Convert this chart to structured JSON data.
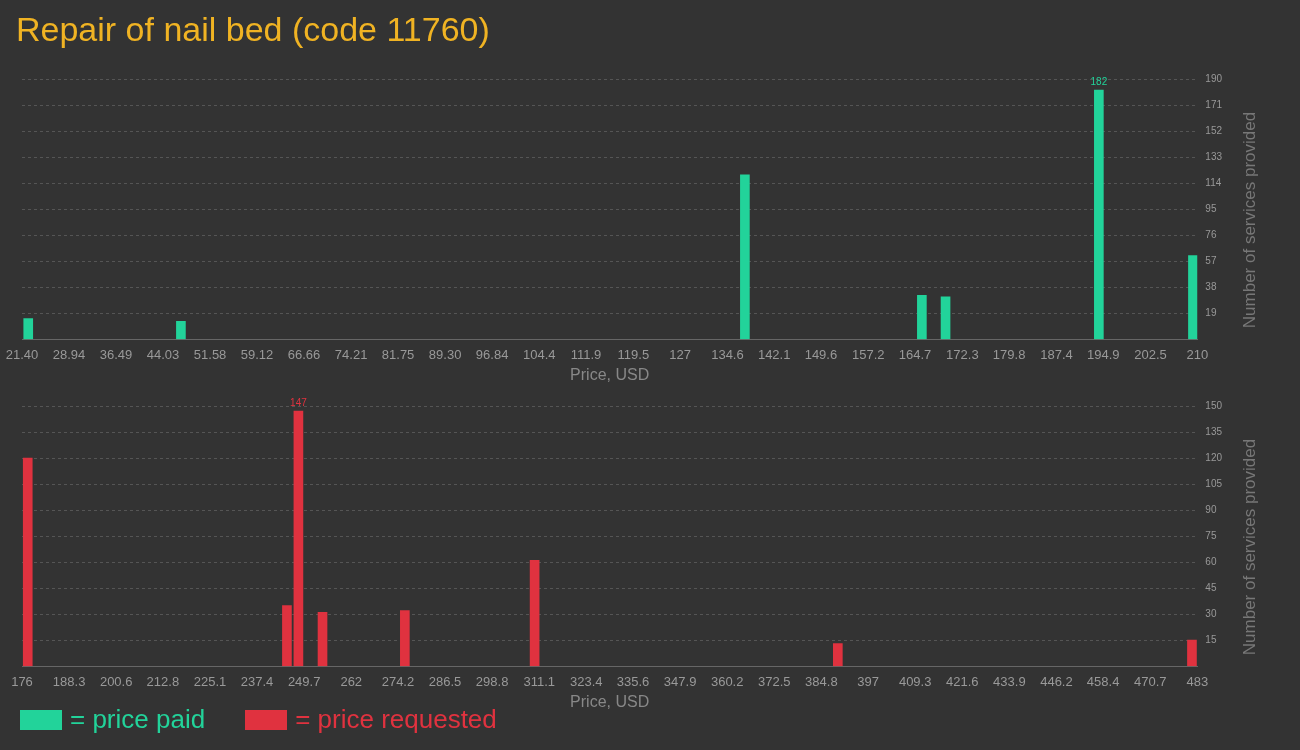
{
  "chart_data": [
    {
      "type": "bar",
      "title": "Repair of nail bed (code 11760)",
      "xlabel": "Price, USD",
      "ylabel": "Number of services provided",
      "series": [
        {
          "name": "= price paid",
          "color": "#22d39a",
          "x": [
            22.4,
            46.9,
            137.4,
            165.8,
            169.6,
            194.2,
            209.3
          ],
          "values": [
            15,
            13,
            120,
            32,
            31,
            182,
            61
          ],
          "value_labels": [
            null,
            null,
            null,
            null,
            null,
            "182",
            null
          ]
        }
      ],
      "xlim": [
        21.4,
        210
      ],
      "xticks": [
        {
          "value": 21.4,
          "label": "21.40"
        },
        28.94,
        36.49,
        44.03,
        51.58,
        59.12,
        66.66,
        74.21,
        81.75,
        {
          "value": 89.3,
          "label": "89.30"
        },
        96.84,
        104.4,
        111.9,
        119.5,
        127,
        134.6,
        142.1,
        149.6,
        157.2,
        164.7,
        172.3,
        179.8,
        187.4,
        194.9,
        202.5,
        210
      ],
      "ylim": [
        0,
        190
      ],
      "yticks": [
        19,
        38,
        57,
        76,
        95,
        114,
        133,
        152,
        171,
        190
      ],
      "grid": "y",
      "legend": "bottom left"
    },
    {
      "type": "bar",
      "xlabel": "Price, USD",
      "ylabel": "Number of services provided",
      "series": [
        {
          "name": "= price requested",
          "color": "#e0323f",
          "x": [
            177.5,
            245.2,
            248.2,
            254.5,
            276.0,
            309.9,
            389.1,
            481.6
          ],
          "values": [
            120,
            35,
            147,
            31,
            32,
            61,
            13,
            15
          ],
          "value_labels": [
            null,
            null,
            "147",
            null,
            null,
            null,
            null,
            null
          ]
        }
      ],
      "xlim": [
        176,
        483
      ],
      "xticks": [
        176,
        188.3,
        200.6,
        212.8,
        225.1,
        237.4,
        249.7,
        262,
        274.2,
        286.5,
        298.8,
        311.1,
        323.4,
        335.6,
        347.9,
        360.2,
        372.5,
        384.8,
        397,
        409.3,
        421.6,
        433.9,
        446.2,
        458.4,
        470.7,
        483
      ],
      "ylim": [
        0,
        150
      ],
      "yticks": [
        15,
        30,
        45,
        60,
        75,
        90,
        105,
        120,
        135,
        150
      ],
      "grid": "y",
      "legend": "bottom left"
    }
  ]
}
